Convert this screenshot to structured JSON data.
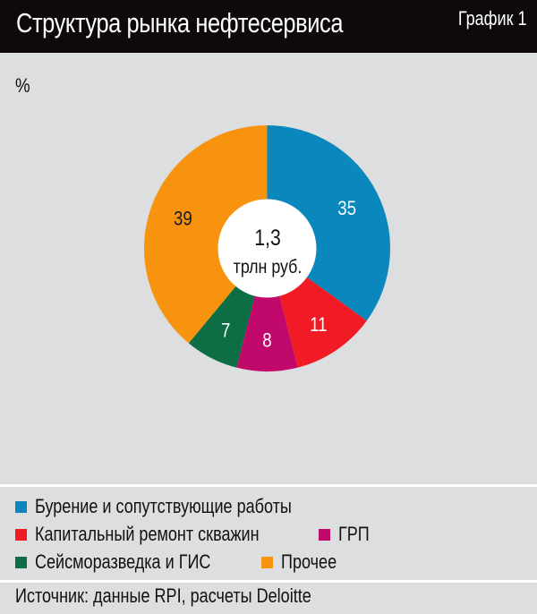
{
  "header": {
    "title": "Структура рынка нефтесервиса",
    "figure_number": "График 1"
  },
  "unit_label": "%",
  "center": {
    "value": "1,3",
    "unit": "трлн руб."
  },
  "legend": {
    "items": [
      {
        "label": "Бурение и сопутствующие работы",
        "color": "#0a87bd"
      },
      {
        "label": "Капитальный ремонт скважин",
        "color": "#f01b24"
      },
      {
        "label": "ГРП",
        "color": "#c0096b"
      },
      {
        "label": "Сейсморазведка и ГИС",
        "color": "#0d6e45"
      },
      {
        "label": "Прочее",
        "color": "#f7930f"
      }
    ]
  },
  "source": "Источник: данные RPI, расчеты Deloitte",
  "chart_data": {
    "type": "pie",
    "variant": "donut",
    "title": "Структура рынка нефтесервиса",
    "unit": "%",
    "center_label": "1,3 трлн руб.",
    "categories": [
      "Бурение и сопутствующие работы",
      "Капитальный ремонт скважин",
      "ГРП",
      "Сейсморазведка и ГИС",
      "Прочее"
    ],
    "values": [
      35,
      11,
      8,
      7,
      39
    ],
    "colors": [
      "#0a87bd",
      "#f01b24",
      "#c0096b",
      "#0d6e45",
      "#f7930f"
    ],
    "label_colors": [
      "#ffffff",
      "#ffffff",
      "#ffffff",
      "#ffffff",
      "#1a1a1a"
    ],
    "start_angle": "top",
    "direction": "clockwise",
    "legend_position": "bottom",
    "source": "Источник: данные RPI, расчеты Deloitte"
  }
}
